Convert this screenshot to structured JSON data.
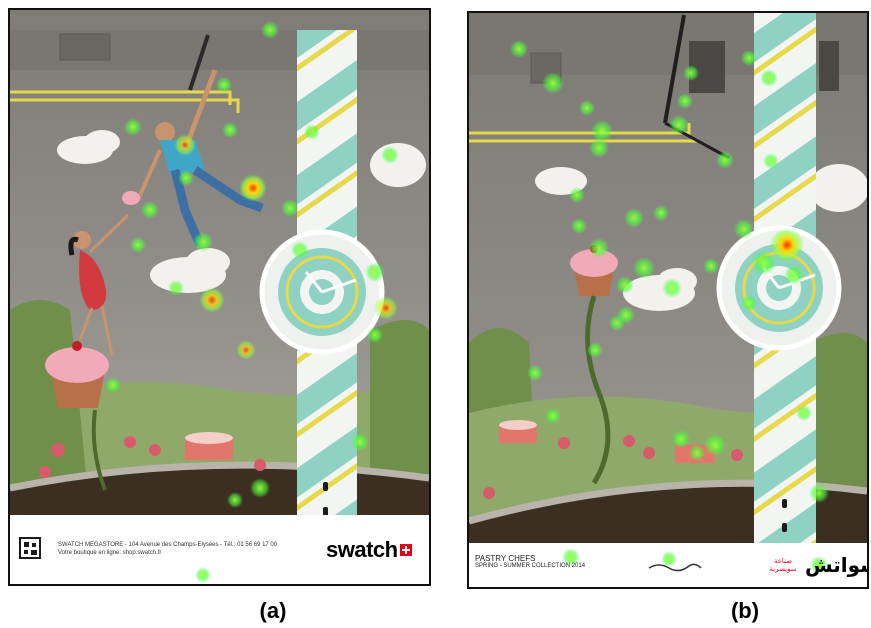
{
  "panels": [
    {
      "caption": "(a)",
      "footer": {
        "store_line": "SWATCH MEGASTORE - 104 Avenue des Champs-Elysées - Tél.: 01 56 69 17 00",
        "shop_line": "Votre boutique en ligne: shop.swatch.fr",
        "brand": "swatch"
      }
    },
    {
      "caption": "(b)",
      "footer": {
        "collection_title": "PASTRY CHEFS",
        "collection_sub": "SPRING - SUMMER COLLECTION 2014",
        "brand_arabic": "سواتش",
        "brand_arabic_small": "صناعة سويسرية"
      }
    }
  ],
  "colors": {
    "wall": "#8d8a85",
    "strap_teal": "#8fd1c2",
    "strap_white": "#f2f5f2",
    "strap_yellow": "#e6d94a",
    "grass": "#6f8f4a",
    "soil": "#3c2f22",
    "gaze_green": "#4cff3a",
    "gaze_yellow": "#f7f000",
    "gaze_red": "#ff2a00",
    "swatch_red": "#e2001a"
  }
}
